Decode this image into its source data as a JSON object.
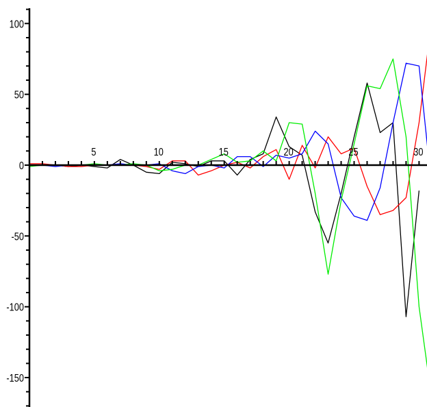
{
  "chart_data": {
    "type": "line",
    "title": "",
    "xlabel": "",
    "ylabel": "",
    "xlim": [
      0,
      31
    ],
    "ylim": [
      -165,
      110
    ],
    "grid": false,
    "legend": "none",
    "x_ticks": [
      {
        "value": 5,
        "label": "5"
      },
      {
        "value": 10,
        "label": "10"
      },
      {
        "value": 15,
        "label": "15"
      },
      {
        "value": 20,
        "label": "20"
      },
      {
        "value": 25,
        "label": "25"
      },
      {
        "value": 30,
        "label": "30"
      }
    ],
    "y_ticks": [
      {
        "value": 100,
        "label": "100"
      },
      {
        "value": 50,
        "label": "50"
      },
      {
        "value": 0,
        "label": "0"
      },
      {
        "value": -50,
        "label": "-50"
      },
      {
        "value": -100,
        "label": "-100"
      },
      {
        "value": -150,
        "label": "-150"
      }
    ],
    "series": [
      {
        "color": "#000000",
        "points": [
          [
            0,
            0
          ],
          [
            1,
            0
          ],
          [
            2,
            0
          ],
          [
            3,
            -1
          ],
          [
            4,
            0
          ],
          [
            5,
            -1
          ],
          [
            6,
            -2
          ],
          [
            7,
            4
          ],
          [
            8,
            0
          ],
          [
            9,
            -5
          ],
          [
            10,
            -6
          ],
          [
            11,
            2
          ],
          [
            12,
            1
          ],
          [
            13,
            -1
          ],
          [
            14,
            3
          ],
          [
            15,
            3
          ],
          [
            16,
            -7
          ],
          [
            17,
            4
          ],
          [
            18,
            8
          ],
          [
            19,
            34
          ],
          [
            20,
            13
          ],
          [
            21,
            7
          ],
          [
            22,
            -33
          ],
          [
            23,
            -55
          ],
          [
            24,
            -20
          ],
          [
            25,
            20
          ],
          [
            26,
            58
          ],
          [
            27,
            23
          ],
          [
            28,
            30
          ],
          [
            29,
            -107
          ],
          [
            30,
            -18
          ]
        ]
      },
      {
        "color": "#ff0000",
        "points": [
          [
            0,
            1
          ],
          [
            1,
            1
          ],
          [
            2,
            0
          ],
          [
            3,
            -1
          ],
          [
            4,
            -1
          ],
          [
            5,
            0
          ],
          [
            6,
            0
          ],
          [
            7,
            0
          ],
          [
            8,
            0
          ],
          [
            9,
            -1
          ],
          [
            10,
            -3
          ],
          [
            11,
            3
          ],
          [
            12,
            3
          ],
          [
            13,
            -7
          ],
          [
            14,
            -4
          ],
          [
            15,
            0
          ],
          [
            16,
            2
          ],
          [
            17,
            -2
          ],
          [
            18,
            6
          ],
          [
            19,
            11
          ],
          [
            20,
            -10
          ],
          [
            21,
            14
          ],
          [
            22,
            -2
          ],
          [
            23,
            20
          ],
          [
            24,
            8
          ],
          [
            25,
            12
          ],
          [
            26,
            -15
          ],
          [
            27,
            -35
          ],
          [
            28,
            -32
          ],
          [
            29,
            -23
          ],
          [
            30,
            30
          ],
          [
            31,
            105
          ]
        ]
      },
      {
        "color": "#0000ff",
        "points": [
          [
            0,
            0
          ],
          [
            1,
            0
          ],
          [
            2,
            -1
          ],
          [
            3,
            0
          ],
          [
            4,
            0
          ],
          [
            5,
            0
          ],
          [
            6,
            0
          ],
          [
            7,
            1
          ],
          [
            8,
            0
          ],
          [
            9,
            0
          ],
          [
            10,
            1
          ],
          [
            11,
            -4
          ],
          [
            12,
            -6
          ],
          [
            13,
            -1
          ],
          [
            14,
            0
          ],
          [
            15,
            -2
          ],
          [
            16,
            6
          ],
          [
            17,
            6
          ],
          [
            18,
            -1
          ],
          [
            19,
            7
          ],
          [
            20,
            5
          ],
          [
            21,
            8
          ],
          [
            22,
            24
          ],
          [
            23,
            15
          ],
          [
            24,
            -23
          ],
          [
            25,
            -36
          ],
          [
            26,
            -39
          ],
          [
            27,
            -16
          ],
          [
            28,
            30
          ],
          [
            29,
            72
          ],
          [
            30,
            70
          ],
          [
            31,
            -18
          ]
        ]
      },
      {
        "color": "#00ee00",
        "points": [
          [
            0,
            -1
          ],
          [
            1,
            0
          ],
          [
            2,
            0
          ],
          [
            3,
            0
          ],
          [
            4,
            0
          ],
          [
            5,
            1
          ],
          [
            6,
            0
          ],
          [
            7,
            0
          ],
          [
            8,
            1
          ],
          [
            9,
            0
          ],
          [
            10,
            -4
          ],
          [
            11,
            -3
          ],
          [
            12,
            0
          ],
          [
            13,
            0
          ],
          [
            14,
            4
          ],
          [
            15,
            8
          ],
          [
            16,
            2
          ],
          [
            17,
            3
          ],
          [
            18,
            10
          ],
          [
            19,
            3
          ],
          [
            20,
            30
          ],
          [
            21,
            29
          ],
          [
            22,
            -20
          ],
          [
            23,
            -77
          ],
          [
            24,
            -25
          ],
          [
            25,
            15
          ],
          [
            26,
            56
          ],
          [
            27,
            54
          ],
          [
            28,
            75
          ],
          [
            29,
            20
          ],
          [
            30,
            -100
          ],
          [
            31,
            -167
          ]
        ]
      }
    ]
  }
}
